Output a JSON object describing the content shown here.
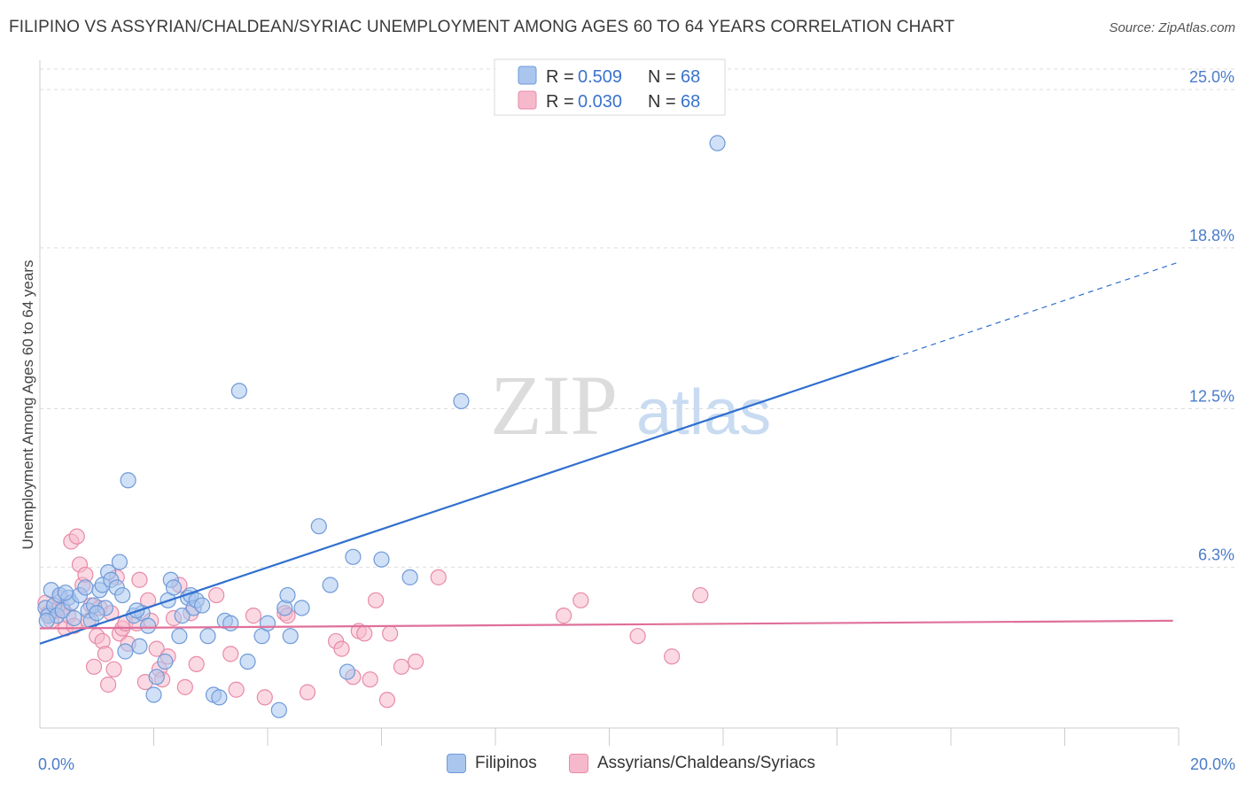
{
  "header": {
    "title": "FILIPINO VS ASSYRIAN/CHALDEAN/SYRIAC UNEMPLOYMENT AMONG AGES 60 TO 64 YEARS CORRELATION CHART",
    "source": "Source: ZipAtlas.com"
  },
  "watermark": {
    "zip": "ZIP",
    "atlas": "atlas"
  },
  "legend": {
    "rows": [
      {
        "r_label": "R =",
        "r_value": "0.509",
        "n_label": "N =",
        "n_value": "68"
      },
      {
        "r_label": "R =",
        "r_value": "0.030",
        "n_label": "N =",
        "n_value": "68"
      }
    ]
  },
  "bottom_legend": {
    "series1": "Filipinos",
    "series2": "Assyrians/Chaldeans/Syriacs"
  },
  "colors": {
    "blue_fill": "#aac6ee",
    "blue_stroke": "#6f9ad8",
    "blue_line": "#2f6fcf",
    "pink_fill": "#f6b9cc",
    "pink_stroke": "#e88aa8",
    "pink_line": "#e0709a",
    "tick_text": "#4a7cc9",
    "grid": "#dddddd"
  },
  "chart_data": {
    "type": "scatter",
    "title": "FILIPINO VS ASSYRIAN/CHALDEAN/SYRIAC UNEMPLOYMENT AMONG AGES 60 TO 64 YEARS CORRELATION CHART",
    "xlabel": "",
    "ylabel": "Unemployment Among Ages 60 to 64 years",
    "xlim": [
      0,
      20
    ],
    "ylim": [
      0,
      25.8
    ],
    "x_tick_labels": [
      "0.0%",
      "20.0%"
    ],
    "y_ticks": [
      6.3,
      12.5,
      18.8,
      25.0
    ],
    "y_tick_labels": [
      "6.3%",
      "12.5%",
      "18.8%",
      "25.0%"
    ],
    "grid": true,
    "legend_position": "top-center",
    "series": [
      {
        "name": "Filipinos",
        "r": 0.509,
        "n": 68,
        "trend": {
          "x0": 0.0,
          "y0": 3.3,
          "x_solid_end": 15.0,
          "x_dash_end": 20.0,
          "slope": 0.747
        },
        "points": [
          [
            0.1,
            4.7
          ],
          [
            0.15,
            4.4
          ],
          [
            0.2,
            5.4
          ],
          [
            0.25,
            4.8
          ],
          [
            0.3,
            4.4
          ],
          [
            0.35,
            5.2
          ],
          [
            0.4,
            4.6
          ],
          [
            0.5,
            5.1
          ],
          [
            0.55,
            4.9
          ],
          [
            0.6,
            4.3
          ],
          [
            0.7,
            5.2
          ],
          [
            0.8,
            5.5
          ],
          [
            0.85,
            4.6
          ],
          [
            0.9,
            4.2
          ],
          [
            0.95,
            4.8
          ],
          [
            1.05,
            5.4
          ],
          [
            1.1,
            5.6
          ],
          [
            1.15,
            4.7
          ],
          [
            1.2,
            6.1
          ],
          [
            1.25,
            5.8
          ],
          [
            1.35,
            5.5
          ],
          [
            1.4,
            6.5
          ],
          [
            1.45,
            5.2
          ],
          [
            1.5,
            3.0
          ],
          [
            1.55,
            9.7
          ],
          [
            1.65,
            4.4
          ],
          [
            1.75,
            3.2
          ],
          [
            1.8,
            4.5
          ],
          [
            1.9,
            4.0
          ],
          [
            2.0,
            1.3
          ],
          [
            2.05,
            2.0
          ],
          [
            2.2,
            2.6
          ],
          [
            2.25,
            5.0
          ],
          [
            2.3,
            5.8
          ],
          [
            2.35,
            5.5
          ],
          [
            2.45,
            3.6
          ],
          [
            2.5,
            4.4
          ],
          [
            2.6,
            5.1
          ],
          [
            2.65,
            5.2
          ],
          [
            2.7,
            4.7
          ],
          [
            2.75,
            5.0
          ],
          [
            2.85,
            4.8
          ],
          [
            2.95,
            3.6
          ],
          [
            3.05,
            1.3
          ],
          [
            3.15,
            1.2
          ],
          [
            3.25,
            4.2
          ],
          [
            3.35,
            4.1
          ],
          [
            3.5,
            13.2
          ],
          [
            3.65,
            2.6
          ],
          [
            3.9,
            3.6
          ],
          [
            4.0,
            4.1
          ],
          [
            4.2,
            0.7
          ],
          [
            4.3,
            4.7
          ],
          [
            4.35,
            5.2
          ],
          [
            4.4,
            3.6
          ],
          [
            4.6,
            4.7
          ],
          [
            4.9,
            7.9
          ],
          [
            5.1,
            5.6
          ],
          [
            5.4,
            2.2
          ],
          [
            5.5,
            6.7
          ],
          [
            6.0,
            6.6
          ],
          [
            6.5,
            5.9
          ],
          [
            7.4,
            12.8
          ],
          [
            11.9,
            22.9
          ],
          [
            0.12,
            4.2
          ],
          [
            0.45,
            5.3
          ],
          [
            1.0,
            4.5
          ],
          [
            1.7,
            4.6
          ]
        ]
      },
      {
        "name": "Assyrians/Chaldeans/Syriacs",
        "r": 0.03,
        "n": 68,
        "trend": {
          "x0": 0.0,
          "y0": 3.9,
          "x_solid_end": 19.9,
          "x_dash_end": 19.9,
          "slope": 0.0151
        },
        "points": [
          [
            0.1,
            4.9
          ],
          [
            0.15,
            4.5
          ],
          [
            0.2,
            4.2
          ],
          [
            0.3,
            4.6
          ],
          [
            0.35,
            5.1
          ],
          [
            0.4,
            4.7
          ],
          [
            0.45,
            3.9
          ],
          [
            0.5,
            4.4
          ],
          [
            0.55,
            7.3
          ],
          [
            0.6,
            4.0
          ],
          [
            0.65,
            7.5
          ],
          [
            0.7,
            6.4
          ],
          [
            0.75,
            5.6
          ],
          [
            0.8,
            6.0
          ],
          [
            0.85,
            4.2
          ],
          [
            0.9,
            4.8
          ],
          [
            0.95,
            2.4
          ],
          [
            1.0,
            3.6
          ],
          [
            1.05,
            4.7
          ],
          [
            1.1,
            3.4
          ],
          [
            1.15,
            2.9
          ],
          [
            1.2,
            1.7
          ],
          [
            1.25,
            4.5
          ],
          [
            1.3,
            2.3
          ],
          [
            1.35,
            5.9
          ],
          [
            1.4,
            3.7
          ],
          [
            1.45,
            3.9
          ],
          [
            1.5,
            4.1
          ],
          [
            1.55,
            3.3
          ],
          [
            1.7,
            4.1
          ],
          [
            1.75,
            5.8
          ],
          [
            1.85,
            1.8
          ],
          [
            1.9,
            5.0
          ],
          [
            1.95,
            4.2
          ],
          [
            2.05,
            3.1
          ],
          [
            2.1,
            2.3
          ],
          [
            2.15,
            1.9
          ],
          [
            2.25,
            2.8
          ],
          [
            2.35,
            4.3
          ],
          [
            2.45,
            5.6
          ],
          [
            2.55,
            1.6
          ],
          [
            2.65,
            4.5
          ],
          [
            2.75,
            2.5
          ],
          [
            3.1,
            5.2
          ],
          [
            3.35,
            2.9
          ],
          [
            3.45,
            1.5
          ],
          [
            3.75,
            4.4
          ],
          [
            3.95,
            1.2
          ],
          [
            4.3,
            4.5
          ],
          [
            4.35,
            4.4
          ],
          [
            4.7,
            1.4
          ],
          [
            5.2,
            3.4
          ],
          [
            5.3,
            3.1
          ],
          [
            5.5,
            2.0
          ],
          [
            5.6,
            3.8
          ],
          [
            5.7,
            3.7
          ],
          [
            5.8,
            1.9
          ],
          [
            5.9,
            5.0
          ],
          [
            6.1,
            1.1
          ],
          [
            6.15,
            3.7
          ],
          [
            6.35,
            2.4
          ],
          [
            6.6,
            2.6
          ],
          [
            7.0,
            5.9
          ],
          [
            9.2,
            4.4
          ],
          [
            9.5,
            5.0
          ],
          [
            10.5,
            3.6
          ],
          [
            11.1,
            2.8
          ],
          [
            11.6,
            5.2
          ]
        ]
      }
    ]
  }
}
